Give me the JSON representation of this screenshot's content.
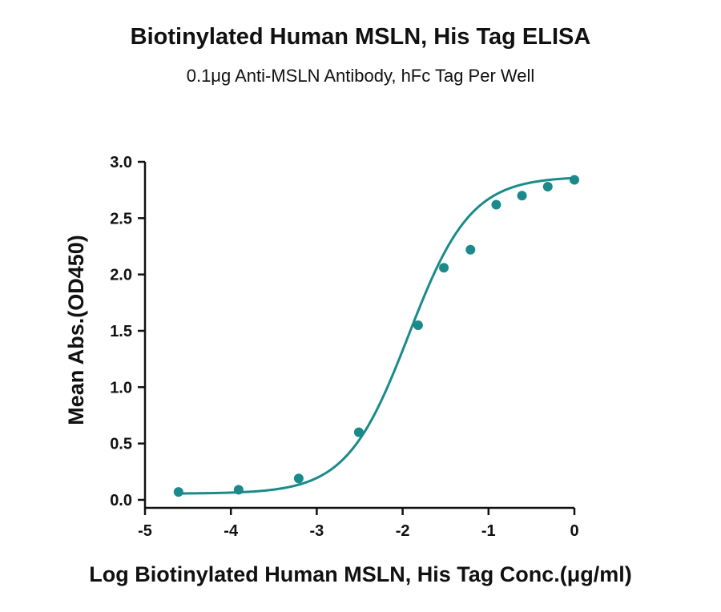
{
  "chart_data": {
    "type": "scatter",
    "title": "Biotinylated Human MSLN, His Tag ELISA",
    "subtitle": "0.1μg Anti-MSLN Antibody, hFc Tag Per Well",
    "xlabel": "Log Biotinylated Human MSLN, His Tag Conc.(μg/ml)",
    "ylabel": "Mean Abs.(OD450)",
    "xlim": [
      -5,
      0
    ],
    "ylim": [
      0,
      3.0
    ],
    "x_ticks": [
      "-5",
      "-4",
      "-3",
      "-2",
      "-1",
      "0"
    ],
    "y_ticks": [
      "0.0",
      "0.5",
      "1.0",
      "1.5",
      "2.0",
      "2.5",
      "3.0"
    ],
    "grid": false,
    "color": "#1a8a8a",
    "series": [
      {
        "points": [
          {
            "x": -4.61,
            "y": 0.07
          },
          {
            "x": -3.91,
            "y": 0.09
          },
          {
            "x": -3.21,
            "y": 0.19
          },
          {
            "x": -2.51,
            "y": 0.6
          },
          {
            "x": -1.82,
            "y": 1.55
          },
          {
            "x": -1.52,
            "y": 2.06
          },
          {
            "x": -1.21,
            "y": 2.22
          },
          {
            "x": -0.91,
            "y": 2.62
          },
          {
            "x": -0.61,
            "y": 2.7
          },
          {
            "x": -0.31,
            "y": 2.78
          },
          {
            "x": 0.0,
            "y": 2.84
          }
        ],
        "fit": {
          "bottom": 0.055,
          "top": 2.87,
          "logEC50": -1.93,
          "hill": 1.2
        }
      }
    ]
  }
}
